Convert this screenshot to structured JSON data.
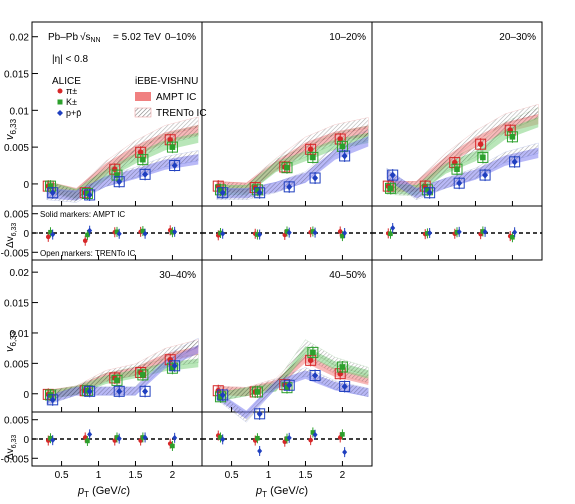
{
  "header": {
    "system": "Pb–Pb",
    "energy": "= 5.02 TeV",
    "rapidity": "|η| < 0.8"
  },
  "legend": {
    "experiment": "ALICE",
    "model": "iEBE-VISHNU",
    "species": [
      {
        "label": "π±",
        "color": "#d62728",
        "marker": "circle"
      },
      {
        "label": "K±",
        "color": "#2ca02c",
        "marker": "square"
      },
      {
        "label": "p+p̄",
        "color": "#1f3fbf",
        "marker": "diamond"
      }
    ],
    "ampt": "AMPT IC",
    "trento": "TRENTo IC",
    "solid_note": "Solid markers: AMPT IC",
    "open_note": "Open markers: TRENTo IC"
  },
  "axes": {
    "y_main_label": "v6,33",
    "y_diff_label": "Δv6,33",
    "x_label": "pT (GeV/c)",
    "y_main_ticks": [
      "0",
      "0.005",
      "0.01",
      "0.015",
      "0.02"
    ],
    "y_diff_ticks": [
      "-0.005",
      "0",
      "0.005"
    ],
    "x_ticks": [
      "0.5",
      "1",
      "1.5",
      "2"
    ]
  },
  "chart_data": {
    "type": "scatter",
    "x": [
      0.35,
      0.85,
      1.25,
      1.6,
      2.0
    ],
    "ylim_main": [
      -0.003,
      0.022
    ],
    "ylim_diff": [
      -0.007,
      0.007
    ],
    "xlim": [
      0.1,
      2.4
    ],
    "panels": [
      {
        "label": "0–10%",
        "series": [
          {
            "name": "π±",
            "values": [
              -0.0003,
              -0.0012,
              0.002,
              0.0043,
              0.006
            ]
          },
          {
            "name": "K±",
            "values": [
              -0.0003,
              -0.0013,
              0.0012,
              0.0033,
              0.005
            ]
          },
          {
            "name": "p+p̄",
            "values": [
              -0.0012,
              -0.0015,
              0.0003,
              0.0013,
              0.0025
            ]
          }
        ],
        "diff": [
          [
            -0.001,
            -0.002,
            0.0002,
            0.0003,
            0.0007
          ],
          [
            0.0002,
            -0.0005,
            0.0003,
            0.0005,
            0.0002
          ],
          [
            -0.0004,
            0.0006,
            -0.0002,
            -0.0002,
            0.0003
          ]
        ]
      },
      {
        "label": "10–20%",
        "series": [
          {
            "name": "π±",
            "values": [
              -0.0003,
              -0.0005,
              0.0023,
              0.0047,
              0.0061
            ]
          },
          {
            "name": "K±",
            "values": [
              -0.0008,
              -0.0008,
              0.0022,
              0.0036,
              0.0051
            ]
          },
          {
            "name": "p+p̄",
            "values": [
              -0.0012,
              -0.0012,
              -0.0004,
              0.0008,
              0.0038
            ]
          }
        ],
        "diff": [
          [
            -0.0006,
            -0.0002,
            -0.0005,
            0.0002,
            0.0004
          ],
          [
            0.0,
            -0.0004,
            0.0004,
            0.0004,
            -0.0008
          ],
          [
            -0.0002,
            -0.0004,
            0.0001,
            0.0001,
            0.0
          ]
        ]
      },
      {
        "label": "20–30%",
        "series": [
          {
            "name": "π±",
            "values": [
              -0.0003,
              -0.0003,
              0.0029,
              0.0054,
              0.0073
            ]
          },
          {
            "name": "K±",
            "values": [
              -0.0006,
              -0.0008,
              0.002,
              0.0036,
              0.0064
            ]
          },
          {
            "name": "p+p̄",
            "values": [
              0.0012,
              -0.0012,
              0.0001,
              0.0012,
              0.003
            ]
          }
        ],
        "diff": [
          [
            -0.0001,
            -0.0003,
            -0.0002,
            -0.0003,
            -0.0008
          ],
          [
            -0.0002,
            -0.0001,
            0.0002,
            0.0004,
            -0.0011
          ],
          [
            0.0013,
            0.0,
            0.0003,
            0.0003,
            0.0002
          ]
        ]
      },
      {
        "label": "30–40%",
        "series": [
          {
            "name": "π±",
            "values": [
              -0.0001,
              0.0005,
              0.0026,
              0.0035,
              0.0056
            ]
          },
          {
            "name": "K±",
            "values": [
              -0.0002,
              0.0005,
              0.0022,
              0.0031,
              0.0042
            ]
          },
          {
            "name": "p+p̄",
            "values": [
              -0.001,
              0.0004,
              0.0004,
              0.0004,
              0.0046
            ]
          }
        ],
        "diff": [
          [
            -0.0004,
            0.0004,
            -0.0004,
            -0.0004,
            -0.0012
          ],
          [
            0.0002,
            -0.0005,
            0.0004,
            0.0004,
            -0.0018
          ],
          [
            -0.0003,
            0.0012,
            0.0001,
            0.0004,
            0.0003
          ]
        ]
      },
      {
        "label": "40–50%",
        "series": [
          {
            "name": "π±",
            "values": [
              0.0005,
              0.0003,
              0.0015,
              0.0055,
              0.0033
            ]
          },
          {
            "name": "K±",
            "values": [
              -0.0005,
              0.0003,
              0.001,
              0.0068,
              0.0044
            ]
          },
          {
            "name": "p+p̄",
            "values": [
              -0.0002,
              -0.0033,
              0.0014,
              0.003,
              0.0012
            ]
          }
        ],
        "diff": [
          [
            0.0009,
            -0.0004,
            -0.0007,
            -0.0003,
            0.0004
          ],
          [
            0.0004,
            0.0002,
            0.0001,
            0.0017,
            0.0012
          ],
          [
            -0.0001,
            -0.0031,
            0.0003,
            0.0011,
            -0.0034
          ]
        ]
      }
    ]
  }
}
